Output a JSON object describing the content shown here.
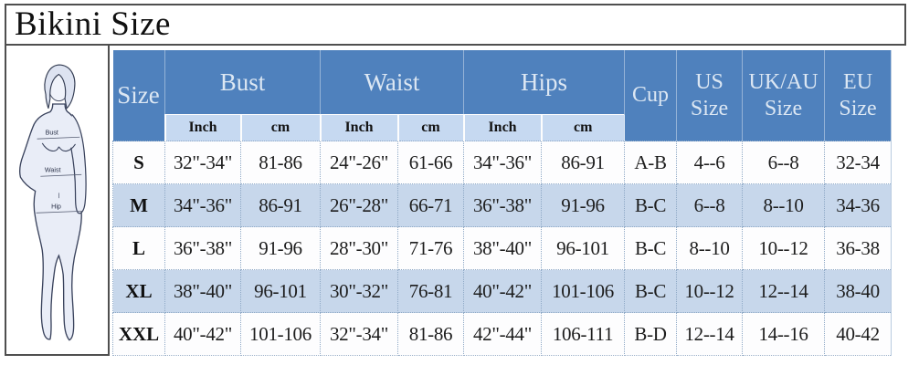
{
  "title": "Bikini Size",
  "figure": {
    "labels": {
      "bust": "Bust",
      "waist": "Waist",
      "hip": "Hip"
    }
  },
  "table": {
    "header": {
      "size": "Size",
      "groups": [
        {
          "label": "Bust",
          "sub": [
            "Inch",
            "cm"
          ]
        },
        {
          "label": "Waist",
          "sub": [
            "Inch",
            "cm"
          ]
        },
        {
          "label": "Hips",
          "sub": [
            "Inch",
            "cm"
          ]
        }
      ],
      "cup": "Cup",
      "us": "US Size",
      "ukau": "UK/AU Size",
      "eu": "EU Size"
    },
    "rows": [
      {
        "size": "S",
        "cells": [
          "32\"-34\"",
          "81-86",
          "24\"-26\"",
          "61-66",
          "34\"-36\"",
          "86-91",
          "A-B",
          "4--6",
          "6--8",
          "32-34"
        ]
      },
      {
        "size": "M",
        "cells": [
          "34\"-36\"",
          "86-91",
          "26\"-28\"",
          "66-71",
          "36\"-38\"",
          "91-96",
          "B-C",
          "6--8",
          "8--10",
          "34-36"
        ]
      },
      {
        "size": "L",
        "cells": [
          "36\"-38\"",
          "91-96",
          "28\"-30\"",
          "71-76",
          "38\"-40\"",
          "96-101",
          "B-C",
          "8--10",
          "10--12",
          "36-38"
        ]
      },
      {
        "size": "XL",
        "cells": [
          "38\"-40\"",
          "96-101",
          "30\"-32\"",
          "76-81",
          "40\"-42\"",
          "101-106",
          "B-C",
          "10--12",
          "12--14",
          "38-40"
        ]
      },
      {
        "size": "XXL",
        "cells": [
          "40\"-42\"",
          "101-106",
          "32\"-34\"",
          "81-86",
          "42\"-44\"",
          "106-111",
          "B-D",
          "12--14",
          "14--16",
          "40-42"
        ]
      }
    ]
  },
  "colors": {
    "header_bg": "#4f81bd",
    "header_text": "#dce7f3",
    "subheader_bg": "#c6d9f1",
    "row_alt_bg": "#c7d7eb",
    "dotted_border": "#8fa9c6",
    "box_border": "#4f4f4f"
  }
}
